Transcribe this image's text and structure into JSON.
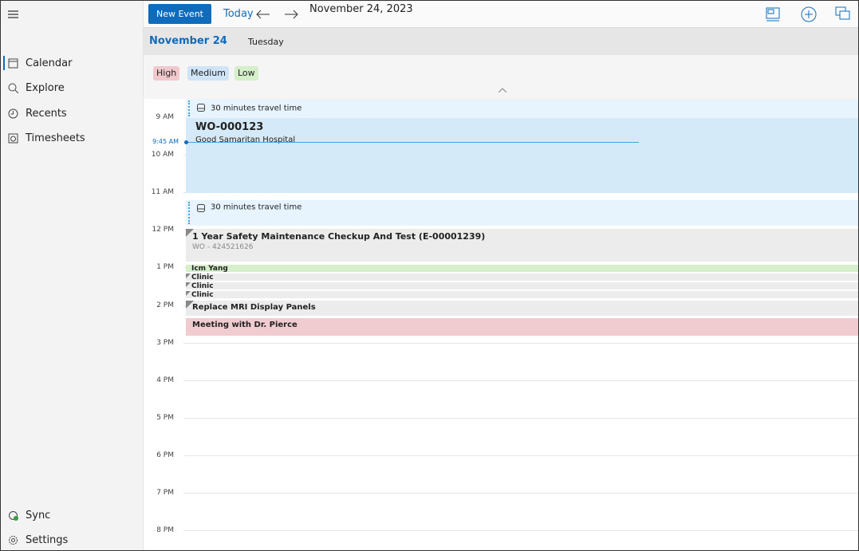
{
  "top_bar": {
    "new_event": "New Event",
    "today": "Today",
    "date": "November 24, 2023"
  },
  "sidebar": {
    "nav": [
      "Calendar",
      "Explore",
      "Recents",
      "Timesheets"
    ],
    "footer": [
      "Sync",
      "Settings"
    ]
  },
  "day_header": {
    "date": "November 24",
    "weekday": "Tuesday"
  },
  "priorities": [
    "High",
    "Medium",
    "Low"
  ],
  "hours": [
    "9 AM",
    "10 AM",
    "11 AM",
    "12 PM",
    "1 PM",
    "2 PM",
    "3 PM",
    "4 PM",
    "5 PM",
    "6 PM",
    "7 PM",
    "8 PM"
  ],
  "current_time": "9:45 AM",
  "events": [
    {
      "title": "30 minutes travel time"
    },
    {
      "title": "WO-000123",
      "subtitle": "Good Samaritan Hospital"
    },
    {
      "title": "30 minutes travel time"
    },
    {
      "title": "1 Year Safety Maintenance Checkup And Test (E-00001239)",
      "subtitle": "WO - 424521626"
    },
    {
      "title": "Icm Yang"
    },
    {
      "title": "Clinic"
    },
    {
      "title": "Clinic"
    },
    {
      "title": "Clinic"
    },
    {
      "title": "Replace MRI Display Panels"
    },
    {
      "title": "Meeting with Dr. Pierce"
    }
  ]
}
